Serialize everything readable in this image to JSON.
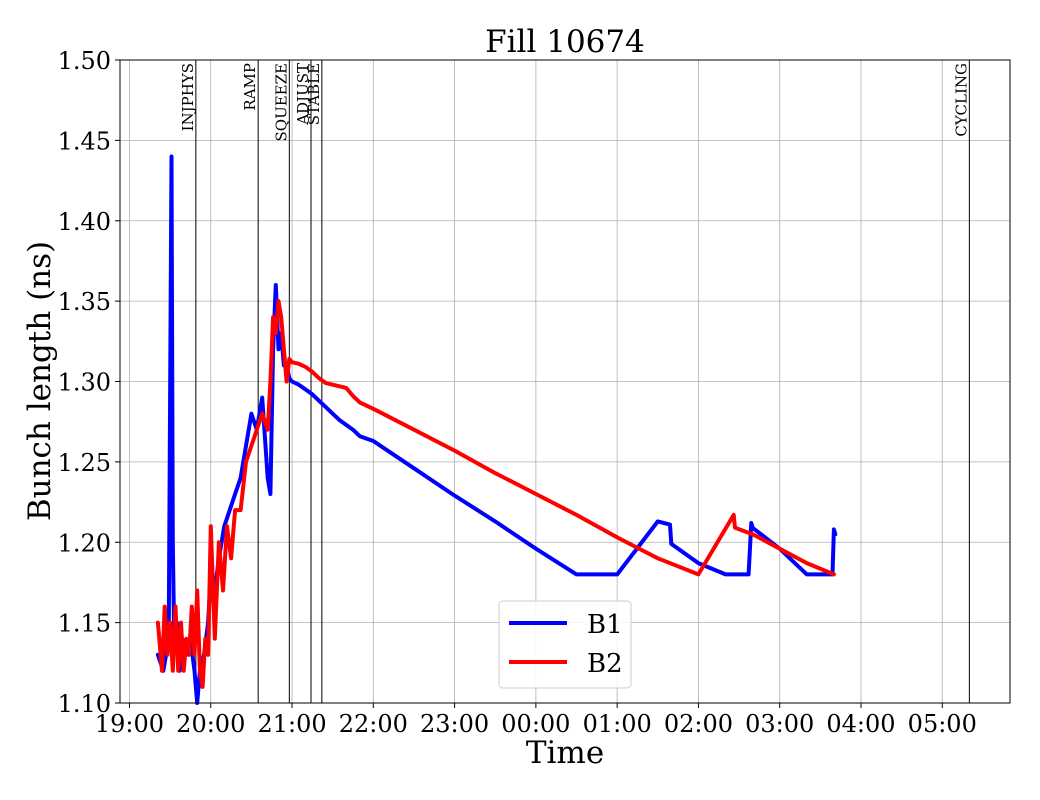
{
  "chart_data": {
    "type": "line",
    "title": "Fill 10674",
    "xlabel": "Time",
    "ylabel": "Bunch length (ns)",
    "xlim": [
      "18:53",
      "05:50"
    ],
    "ylim": [
      1.1,
      1.5
    ],
    "grid": true,
    "legend_position": "bottom-center",
    "x_ticks": [
      "19:00",
      "20:00",
      "21:00",
      "22:00",
      "23:00",
      "00:00",
      "01:00",
      "02:00",
      "03:00",
      "04:00",
      "05:00"
    ],
    "y_ticks": [
      "1.10",
      "1.15",
      "1.20",
      "1.25",
      "1.30",
      "1.35",
      "1.40",
      "1.45",
      "1.50"
    ],
    "mode_markers": [
      {
        "label": "INJPHYS",
        "time": "19:49"
      },
      {
        "label": "RAMP",
        "time": "20:35"
      },
      {
        "label": "SQUEEZE",
        "time": "20:58"
      },
      {
        "label": "ADJUST",
        "time": "21:14"
      },
      {
        "label": "STABLE",
        "time": "21:22"
      },
      {
        "label": "CYCLING",
        "time": "05:20"
      }
    ],
    "series": [
      {
        "name": "B1",
        "color": "#0000ff",
        "x": [
          "19:21",
          "19:25",
          "19:27",
          "19:29",
          "19:31",
          "19:32",
          "19:33",
          "19:35",
          "19:37",
          "19:39",
          "19:42",
          "19:45",
          "19:48",
          "19:50",
          "19:52",
          "19:55",
          "19:58",
          "20:00",
          "20:03",
          "20:06",
          "20:10",
          "20:14",
          "20:18",
          "20:22",
          "20:26",
          "20:30",
          "20:34",
          "20:38",
          "20:42",
          "20:44",
          "20:46",
          "20:48",
          "20:50",
          "20:52",
          "20:54",
          "20:56",
          "20:58",
          "21:00",
          "21:05",
          "21:10",
          "21:15",
          "21:20",
          "21:25",
          "21:30",
          "21:35",
          "21:40",
          "21:45",
          "21:50",
          "22:00",
          "22:30",
          "23:00",
          "23:30",
          "00:00",
          "00:30",
          "01:00",
          "01:30",
          "01:39",
          "01:40",
          "02:00",
          "02:20",
          "02:37",
          "02:39",
          "02:40",
          "03:00",
          "03:20",
          "03:39",
          "03:40",
          "03:41"
        ],
        "y": [
          1.13,
          1.12,
          1.13,
          1.15,
          1.44,
          1.2,
          1.14,
          1.15,
          1.12,
          1.14,
          1.13,
          1.14,
          1.12,
          1.1,
          1.12,
          1.13,
          1.15,
          1.18,
          1.17,
          1.19,
          1.21,
          1.22,
          1.23,
          1.24,
          1.26,
          1.28,
          1.27,
          1.29,
          1.24,
          1.23,
          1.32,
          1.36,
          1.32,
          1.33,
          1.31,
          1.31,
          1.302,
          1.3,
          1.298,
          1.295,
          1.292,
          1.288,
          1.284,
          1.28,
          1.276,
          1.273,
          1.27,
          1.266,
          1.263,
          1.246,
          1.229,
          1.213,
          1.196,
          1.18,
          1.18,
          1.213,
          1.211,
          1.199,
          1.187,
          1.18,
          1.18,
          1.212,
          1.209,
          1.196,
          1.18,
          1.18,
          1.208,
          1.205
        ]
      },
      {
        "name": "B2",
        "color": "#ff0000",
        "x": [
          "19:21",
          "19:24",
          "19:26",
          "19:28",
          "19:30",
          "19:32",
          "19:34",
          "19:36",
          "19:38",
          "19:40",
          "19:42",
          "19:44",
          "19:46",
          "19:48",
          "19:50",
          "19:52",
          "19:54",
          "19:56",
          "19:58",
          "20:00",
          "20:03",
          "20:06",
          "20:09",
          "20:12",
          "20:15",
          "20:18",
          "20:22",
          "20:26",
          "20:30",
          "20:34",
          "20:38",
          "20:42",
          "20:44",
          "20:46",
          "20:48",
          "20:50",
          "20:52",
          "20:54",
          "20:56",
          "20:58",
          "21:00",
          "21:05",
          "21:10",
          "21:15",
          "21:20",
          "21:25",
          "21:30",
          "21:35",
          "21:40",
          "21:45",
          "21:50",
          "22:00",
          "22:30",
          "23:00",
          "23:30",
          "00:00",
          "00:30",
          "01:00",
          "01:30",
          "02:00",
          "02:26",
          "02:27",
          "02:40",
          "03:00",
          "03:20",
          "03:40"
        ],
        "y": [
          1.15,
          1.12,
          1.16,
          1.13,
          1.15,
          1.12,
          1.16,
          1.12,
          1.15,
          1.12,
          1.14,
          1.13,
          1.16,
          1.13,
          1.17,
          1.12,
          1.11,
          1.14,
          1.13,
          1.21,
          1.14,
          1.2,
          1.17,
          1.21,
          1.19,
          1.22,
          1.22,
          1.25,
          1.26,
          1.27,
          1.28,
          1.27,
          1.3,
          1.34,
          1.33,
          1.35,
          1.34,
          1.32,
          1.3,
          1.314,
          1.312,
          1.311,
          1.309,
          1.306,
          1.302,
          1.299,
          1.298,
          1.297,
          1.296,
          1.291,
          1.287,
          1.283,
          1.27,
          1.257,
          1.243,
          1.23,
          1.217,
          1.203,
          1.19,
          1.18,
          1.217,
          1.209,
          1.205,
          1.196,
          1.187,
          1.18
        ]
      }
    ]
  }
}
